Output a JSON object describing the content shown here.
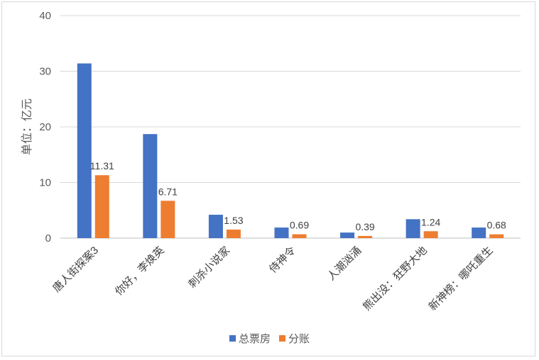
{
  "chart_data": {
    "type": "bar",
    "categories": [
      "唐人街探案3",
      "你好，李焕英",
      "刺杀小说家",
      "侍神令",
      "人潮汹涌",
      "熊出没：狂野大地",
      "新神榜：哪吒重生"
    ],
    "series": [
      {
        "name": "总票房",
        "color": "#4472c4",
        "values": [
          31.4,
          18.7,
          4.2,
          1.9,
          1.0,
          3.4,
          1.9
        ],
        "labels": []
      },
      {
        "name": "分账",
        "color": "#ed7d31",
        "values": [
          11.31,
          6.71,
          1.53,
          0.69,
          0.39,
          1.24,
          0.68
        ],
        "labels": [
          "11.31",
          "6.71",
          "1.53",
          "0.69",
          "0.39",
          "1.24",
          "0.68"
        ]
      }
    ],
    "ylabel": "单位：亿元",
    "ylim": [
      0,
      40
    ],
    "yticks": [
      "0",
      "10",
      "20",
      "30",
      "40"
    ],
    "grid": true,
    "legend": "bottom"
  }
}
